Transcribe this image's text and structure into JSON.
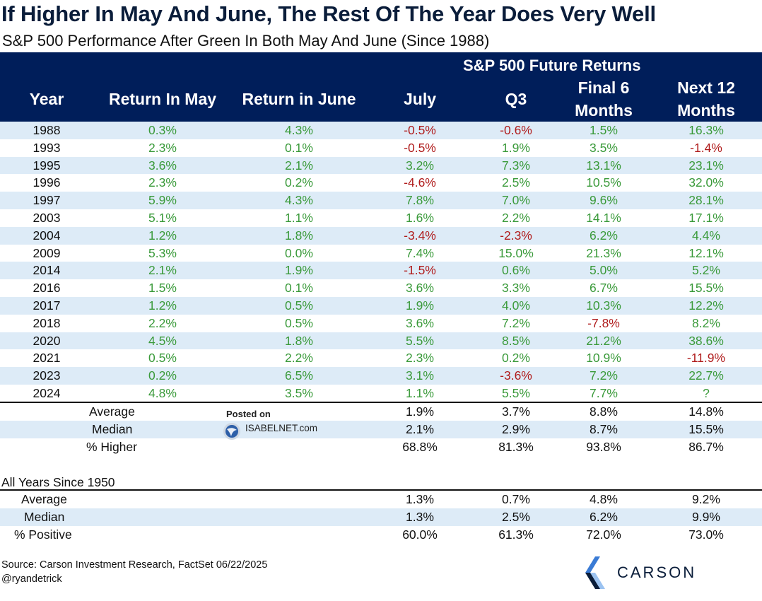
{
  "title": "If Higher In May And June, The Rest Of The Year Does Very Well",
  "subtitle": "S&P 500 Performance After Green In Both May And June (Since 1988)",
  "header": {
    "group_label": "S&P 500 Future Returns",
    "col_year": "Year",
    "col_may": "Return In May",
    "col_june": "Return in June",
    "col_july": "July",
    "col_q3": "Q3",
    "col_final6_l1": "Final 6",
    "col_final6_l2": "Months",
    "col_next12_l1": "Next 12",
    "col_next12_l2": "Months"
  },
  "rows": [
    {
      "year": "1988",
      "may": "0.3%",
      "june": "4.3%",
      "july": "-0.5%",
      "q3": "-0.6%",
      "final6": "1.5%",
      "next12": "16.3%"
    },
    {
      "year": "1993",
      "may": "2.3%",
      "june": "0.1%",
      "july": "-0.5%",
      "q3": "1.9%",
      "final6": "3.5%",
      "next12": "-1.4%"
    },
    {
      "year": "1995",
      "may": "3.6%",
      "june": "2.1%",
      "july": "3.2%",
      "q3": "7.3%",
      "final6": "13.1%",
      "next12": "23.1%"
    },
    {
      "year": "1996",
      "may": "2.3%",
      "june": "0.2%",
      "july": "-4.6%",
      "q3": "2.5%",
      "final6": "10.5%",
      "next12": "32.0%"
    },
    {
      "year": "1997",
      "may": "5.9%",
      "june": "4.3%",
      "july": "7.8%",
      "q3": "7.0%",
      "final6": "9.6%",
      "next12": "28.1%"
    },
    {
      "year": "2003",
      "may": "5.1%",
      "june": "1.1%",
      "july": "1.6%",
      "q3": "2.2%",
      "final6": "14.1%",
      "next12": "17.1%"
    },
    {
      "year": "2004",
      "may": "1.2%",
      "june": "1.8%",
      "july": "-3.4%",
      "q3": "-2.3%",
      "final6": "6.2%",
      "next12": "4.4%"
    },
    {
      "year": "2009",
      "may": "5.3%",
      "june": "0.0%",
      "july": "7.4%",
      "q3": "15.0%",
      "final6": "21.3%",
      "next12": "12.1%"
    },
    {
      "year": "2014",
      "may": "2.1%",
      "june": "1.9%",
      "july": "-1.5%",
      "q3": "0.6%",
      "final6": "5.0%",
      "next12": "5.2%"
    },
    {
      "year": "2016",
      "may": "1.5%",
      "june": "0.1%",
      "july": "3.6%",
      "q3": "3.3%",
      "final6": "6.7%",
      "next12": "15.5%"
    },
    {
      "year": "2017",
      "may": "1.2%",
      "june": "0.5%",
      "july": "1.9%",
      "q3": "4.0%",
      "final6": "10.3%",
      "next12": "12.2%"
    },
    {
      "year": "2018",
      "may": "2.2%",
      "june": "0.5%",
      "july": "3.6%",
      "q3": "7.2%",
      "final6": "-7.8%",
      "next12": "8.2%"
    },
    {
      "year": "2020",
      "may": "4.5%",
      "june": "1.8%",
      "july": "5.5%",
      "q3": "8.5%",
      "final6": "21.2%",
      "next12": "38.6%"
    },
    {
      "year": "2021",
      "may": "0.5%",
      "june": "2.2%",
      "july": "2.3%",
      "q3": "0.2%",
      "final6": "10.9%",
      "next12": "-11.9%"
    },
    {
      "year": "2023",
      "may": "0.2%",
      "june": "6.5%",
      "july": "3.1%",
      "q3": "-3.6%",
      "final6": "7.2%",
      "next12": "22.7%"
    },
    {
      "year": "2024",
      "may": "4.8%",
      "june": "3.5%",
      "july": "1.1%",
      "q3": "5.5%",
      "final6": "7.7%",
      "next12": "?"
    }
  ],
  "summary": [
    {
      "label": "Average",
      "july": "1.9%",
      "q3": "3.7%",
      "final6": "8.8%",
      "next12": "14.8%"
    },
    {
      "label": "Median",
      "july": "2.1%",
      "q3": "2.9%",
      "final6": "8.7%",
      "next12": "15.5%"
    },
    {
      "label": "% Higher",
      "july": "68.8%",
      "q3": "81.3%",
      "final6": "93.8%",
      "next12": "86.7%"
    }
  ],
  "all_years_label": "All Years Since 1950",
  "all_years": [
    {
      "label": "Average",
      "july": "1.3%",
      "q3": "0.7%",
      "final6": "4.8%",
      "next12": "9.2%"
    },
    {
      "label": "Median",
      "july": "1.3%",
      "q3": "2.5%",
      "final6": "6.2%",
      "next12": "9.9%"
    },
    {
      "label": "% Positive",
      "july": "60.0%",
      "q3": "61.3%",
      "final6": "72.0%",
      "next12": "73.0%"
    }
  ],
  "watermark": {
    "posted_on": "Posted on",
    "site": "ISABELNET.com"
  },
  "source": "Source: Carson Investment Research, FactSet 06/22/2025",
  "handle": "@ryandetrick",
  "logo_text": "CARSON",
  "colors": {
    "header_bg": "#001e5a",
    "stripe": "#ddebf7",
    "positive": "#3a9a3a",
    "negative": "#b01c1c",
    "logo": "#3a7bd5"
  }
}
